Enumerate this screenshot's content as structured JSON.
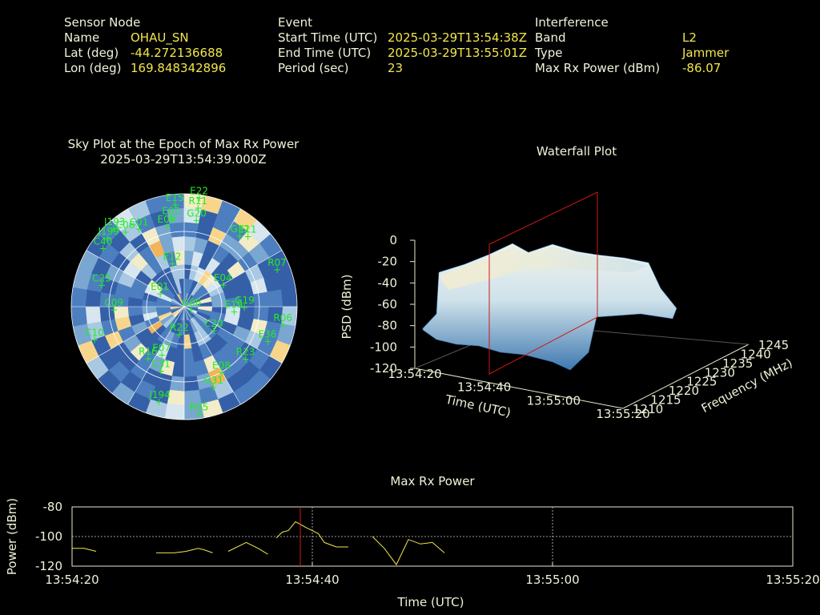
{
  "header": {
    "sensor": {
      "section": "Sensor Node",
      "rows": [
        {
          "label": "Name",
          "value": "OHAU_SN"
        },
        {
          "label": "Lat (deg)",
          "value": "-44.272136688"
        },
        {
          "label": "Lon (deg)",
          "value": "169.848342896"
        }
      ]
    },
    "event": {
      "section": "Event",
      "rows": [
        {
          "label": "Start Time (UTC)",
          "value": "2025-03-29T13:54:38Z"
        },
        {
          "label": "End Time (UTC)",
          "value": "2025-03-29T13:55:01Z"
        },
        {
          "label": "Period (sec)",
          "value": "23"
        }
      ]
    },
    "interference": {
      "section": "Interference",
      "rows": [
        {
          "label": "Band",
          "value": "L2"
        },
        {
          "label": "Type",
          "value": "Jammer"
        },
        {
          "label": "Max Rx Power (dBm)",
          "value": "-86.07"
        }
      ]
    }
  },
  "chart_data": [
    {
      "type": "polar",
      "title": "Sky Plot at the Epoch of Max Rx Power",
      "subtitle": "2025-03-29T13:54:39.000Z",
      "satellites": [
        {
          "id": "E22",
          "az": 8,
          "el": 88
        },
        {
          "id": "E15",
          "az": 355,
          "el": 82
        },
        {
          "id": "R11",
          "az": 8,
          "el": 80
        },
        {
          "id": "E02",
          "az": 352,
          "el": 72
        },
        {
          "id": "G20",
          "az": 8,
          "el": 70
        },
        {
          "id": "E09",
          "az": 348,
          "el": 66
        },
        {
          "id": "C01",
          "az": 330,
          "el": 72
        },
        {
          "id": "C06",
          "az": 322,
          "el": 76
        },
        {
          "id": "G32",
          "az": 38,
          "el": 72
        },
        {
          "id": "E11",
          "az": 42,
          "el": 76
        },
        {
          "id": "J193",
          "az": 318,
          "el": 84
        },
        {
          "id": "J199",
          "az": 312,
          "el": 82
        },
        {
          "id": "C40",
          "az": 306,
          "el": 80
        },
        {
          "id": "R07",
          "az": 68,
          "el": 80
        },
        {
          "id": "E12",
          "az": 345,
          "el": 36
        },
        {
          "id": "E04",
          "az": 60,
          "el": 36
        },
        {
          "id": "C25",
          "az": 285,
          "el": 68
        },
        {
          "id": "E01",
          "az": 300,
          "el": 22
        },
        {
          "id": "C09",
          "az": 268,
          "el": 56
        },
        {
          "id": "R22",
          "az": 190,
          "el": 22
        },
        {
          "id": "G06",
          "az": 110,
          "el": 6
        },
        {
          "id": "E19",
          "az": 95,
          "el": 40
        },
        {
          "id": "G19",
          "az": 90,
          "el": 48
        },
        {
          "id": "C20",
          "az": 128,
          "el": 30
        },
        {
          "id": "R06",
          "az": 100,
          "el": 80
        },
        {
          "id": "E36",
          "az": 112,
          "el": 72
        },
        {
          "id": "R23",
          "az": 130,
          "el": 64
        },
        {
          "id": "C10",
          "az": 250,
          "el": 76
        },
        {
          "id": "C31",
          "az": 200,
          "el": 54
        },
        {
          "id": "E07",
          "az": 205,
          "el": 42
        },
        {
          "id": "E08",
          "az": 150,
          "el": 60
        },
        {
          "id": "G31",
          "az": 160,
          "el": 68
        },
        {
          "id": "J194",
          "az": 195,
          "el": 78
        },
        {
          "id": "R05",
          "az": 172,
          "el": 86
        },
        {
          "id": "R16",
          "az": 215,
          "el": 50
        }
      ]
    },
    {
      "type": "surface",
      "title": "Waterfall Plot",
      "xlabel": "Time (UTC)",
      "ylabel": "Frequency (MHz)",
      "zlabel": "PSD (dBm)",
      "x_ticks": [
        "13:54:20",
        "13:54:40",
        "13:55:00",
        "13:55:20"
      ],
      "y_ticks": [
        "1210",
        "1215",
        "1220",
        "1225",
        "1230",
        "1235",
        "1240",
        "1245"
      ],
      "z_ticks": [
        "0",
        "-20",
        "-40",
        "-60",
        "-80",
        "-100",
        "-120"
      ],
      "zlim": [
        -120,
        0
      ],
      "marker_time": "13:54:39"
    },
    {
      "type": "line",
      "title": "Max Rx Power",
      "xlabel": "Time (UTC)",
      "ylabel": "Power (dBm)",
      "x_ticks": [
        "13:54:20",
        "13:54:40",
        "13:55:00",
        "13:55:20"
      ],
      "y_ticks": [
        "-80",
        "-100",
        "-120"
      ],
      "ylim": [
        -120,
        -80
      ],
      "xlim_sec": [
        0,
        60
      ],
      "marker_sec": 19,
      "segments": [
        [
          [
            0.0,
            -108
          ],
          [
            1.0,
            -108
          ],
          [
            2.0,
            -110
          ]
        ],
        [
          [
            7.0,
            -111
          ],
          [
            8.5,
            -111
          ],
          [
            9.5,
            -110
          ],
          [
            10.5,
            -108
          ],
          [
            11.0,
            -109
          ],
          [
            11.7,
            -111
          ]
        ],
        [
          [
            13.0,
            -110
          ],
          [
            14.5,
            -104
          ],
          [
            15.5,
            -108
          ],
          [
            16.3,
            -112
          ]
        ],
        [
          [
            17.0,
            -101
          ],
          [
            17.5,
            -97
          ],
          [
            18.0,
            -96
          ],
          [
            18.6,
            -90
          ],
          [
            19.5,
            -94
          ],
          [
            20.5,
            -98
          ],
          [
            21.0,
            -104
          ],
          [
            22.0,
            -107
          ],
          [
            23.0,
            -107
          ]
        ],
        [
          [
            25.0,
            -100
          ],
          [
            26.0,
            -108
          ],
          [
            27.0,
            -119
          ],
          [
            28.0,
            -102
          ],
          [
            29.0,
            -105
          ],
          [
            30.0,
            -104
          ],
          [
            31.0,
            -111
          ]
        ]
      ]
    }
  ]
}
